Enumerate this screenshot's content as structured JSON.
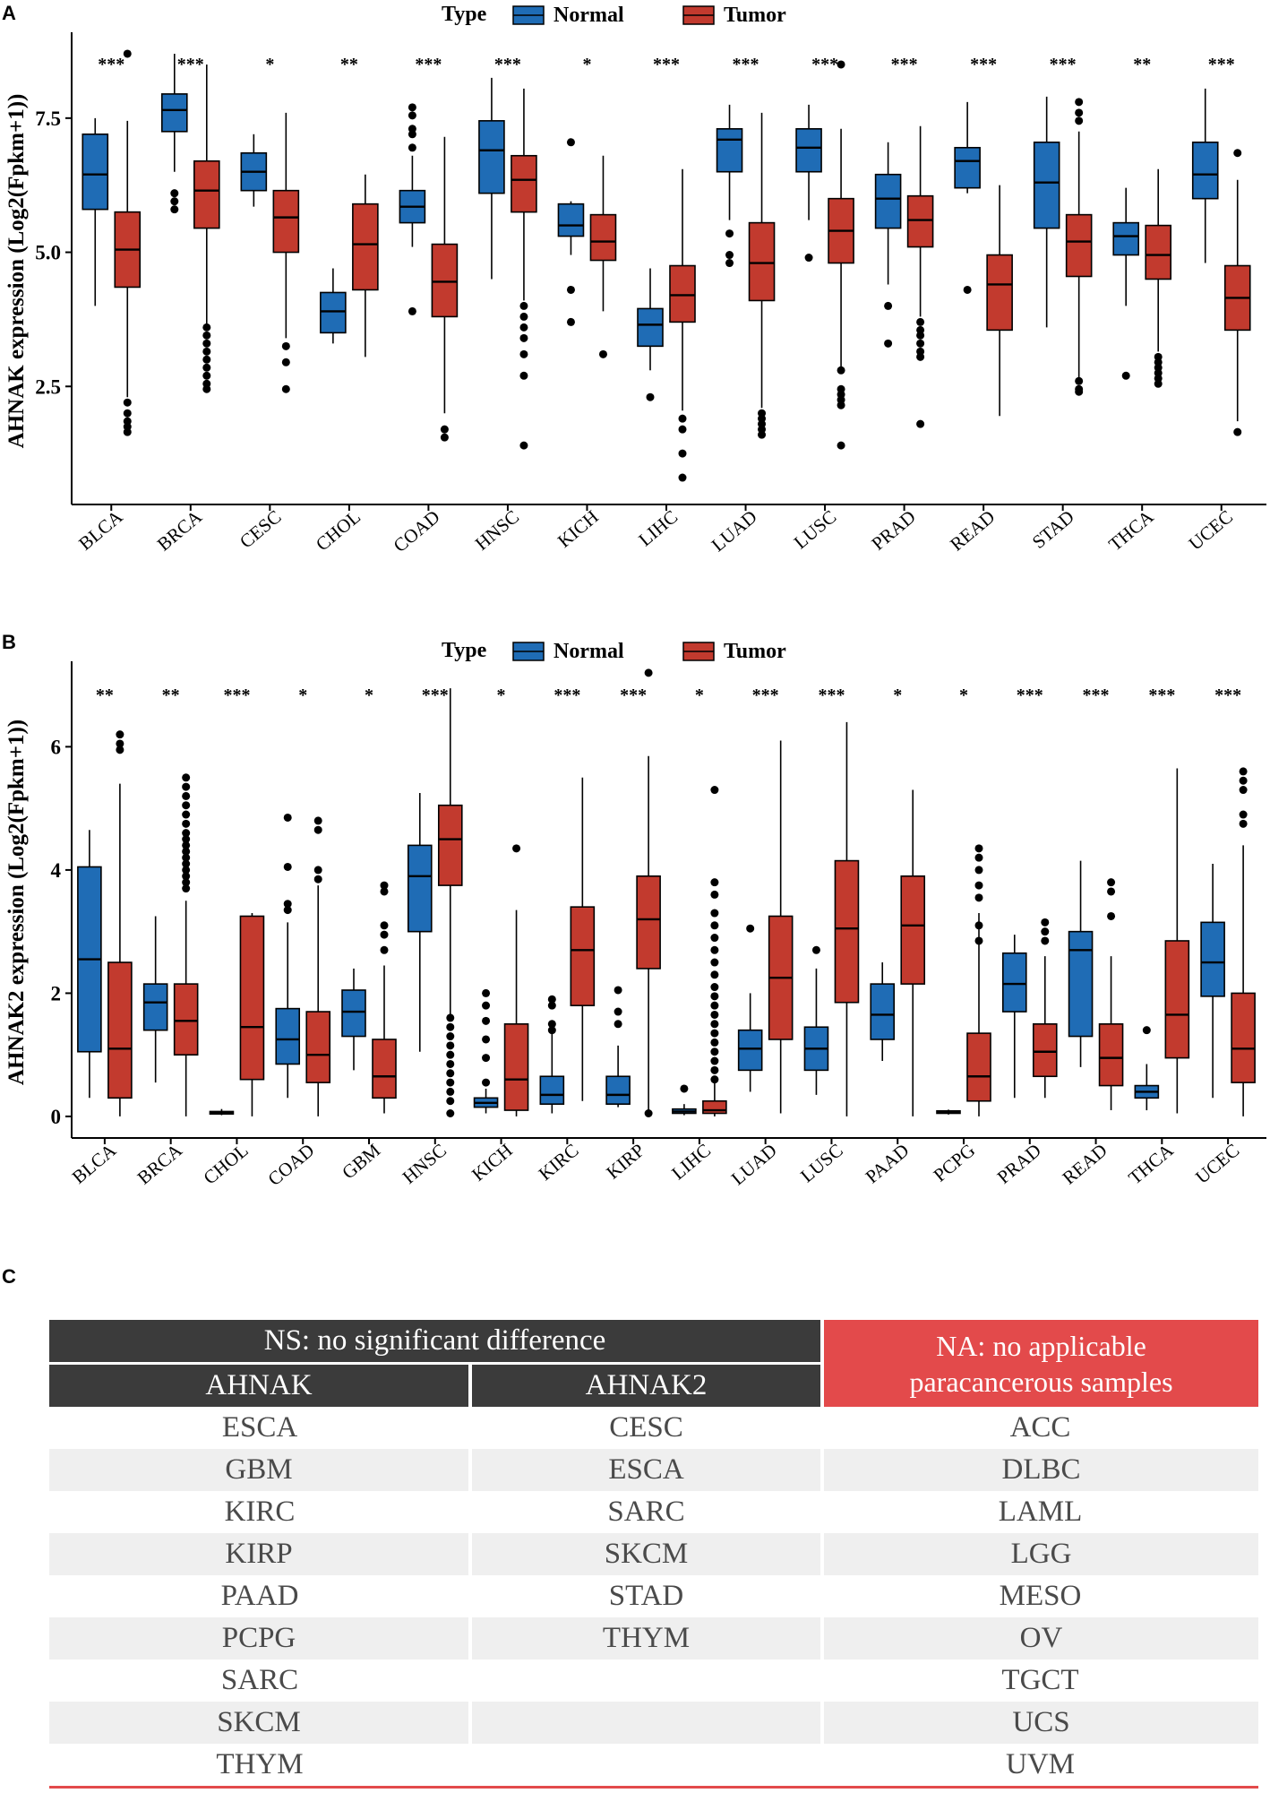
{
  "panel_labels": {
    "a": "A",
    "b": "B",
    "c": "C"
  },
  "colors": {
    "normal": "#1f6cb5",
    "tumor": "#c23a2e",
    "axis": "#000000"
  },
  "chart_data": [
    {
      "type": "boxplot",
      "panel": "A",
      "ylabel": "AHNAK expression (Log2(Fpkm+1))",
      "ylim": [
        0.3,
        9.0
      ],
      "yticks": [
        2.5,
        5.0,
        7.5
      ],
      "ytick_labels": [
        "2.5",
        "5.0",
        "7.5"
      ],
      "legend": {
        "title": "Type",
        "items": [
          "Normal",
          "Tumor"
        ],
        "position": "top"
      },
      "categories": [
        "BLCA",
        "BRCA",
        "CESC",
        "CHOL",
        "COAD",
        "HNSC",
        "KICH",
        "LIHC",
        "LUAD",
        "LUSC",
        "PRAD",
        "READ",
        "STAD",
        "THCA",
        "UCEC"
      ],
      "significance": [
        "***",
        "***",
        "*",
        "**",
        "***",
        "***",
        "*",
        "***",
        "***",
        "***",
        "***",
        "***",
        "***",
        "**",
        "***"
      ],
      "series": [
        {
          "name": "Normal",
          "boxes": [
            [
              4.0,
              5.8,
              6.45,
              7.2,
              7.5,
              []
            ],
            [
              6.5,
              7.25,
              7.65,
              7.95,
              8.7,
              [
                6.1,
                5.95,
                5.8
              ]
            ],
            [
              5.85,
              6.15,
              6.5,
              6.85,
              7.2,
              []
            ],
            [
              3.3,
              3.5,
              3.9,
              4.25,
              4.7,
              []
            ],
            [
              5.1,
              5.55,
              5.85,
              6.15,
              6.8,
              [
                7.7,
                7.55,
                7.3,
                7.2,
                6.95,
                3.9
              ]
            ],
            [
              4.5,
              6.1,
              6.9,
              7.45,
              8.25,
              []
            ],
            [
              4.95,
              5.3,
              5.5,
              5.9,
              5.95,
              [
                7.05,
                4.3,
                3.7
              ]
            ],
            [
              2.8,
              3.25,
              3.65,
              3.95,
              4.7,
              [
                2.3
              ]
            ],
            [
              5.6,
              6.5,
              7.1,
              7.3,
              7.75,
              [
                5.35,
                4.95,
                4.8
              ]
            ],
            [
              5.6,
              6.5,
              6.95,
              7.3,
              7.75,
              [
                4.9
              ]
            ],
            [
              4.4,
              5.45,
              6.0,
              6.45,
              7.05,
              [
                4.0,
                3.3
              ]
            ],
            [
              6.1,
              6.2,
              6.7,
              6.95,
              7.8,
              [
                4.3
              ]
            ],
            [
              3.6,
              5.45,
              6.3,
              7.05,
              7.9,
              []
            ],
            [
              4.0,
              4.95,
              5.3,
              5.55,
              6.2,
              [
                2.7
              ]
            ],
            [
              4.8,
              6.0,
              6.45,
              7.05,
              8.05,
              []
            ]
          ]
        },
        {
          "name": "Tumor",
          "boxes": [
            [
              2.3,
              4.35,
              5.05,
              5.75,
              7.45,
              [
                8.7,
                2.2,
                2.0,
                1.85,
                1.75,
                1.65
              ]
            ],
            [
              3.65,
              5.45,
              6.15,
              6.7,
              8.5,
              [
                3.6,
                3.45,
                3.3,
                3.15,
                3.0,
                2.85,
                2.7,
                2.55,
                2.45
              ]
            ],
            [
              3.4,
              5.0,
              5.65,
              6.15,
              7.6,
              [
                3.25,
                2.95,
                2.45
              ]
            ],
            [
              3.05,
              4.3,
              5.15,
              5.9,
              6.45,
              []
            ],
            [
              2.0,
              3.8,
              4.45,
              5.15,
              7.15,
              [
                1.7,
                1.55
              ]
            ],
            [
              4.1,
              5.75,
              6.35,
              6.8,
              8.05,
              [
                4.0,
                3.8,
                3.6,
                3.4,
                3.1,
                2.7,
                1.4
              ]
            ],
            [
              3.9,
              4.85,
              5.2,
              5.7,
              6.8,
              [
                3.1
              ]
            ],
            [
              2.05,
              3.7,
              4.2,
              4.75,
              6.55,
              [
                1.9,
                1.7,
                1.25,
                0.8
              ]
            ],
            [
              2.1,
              4.1,
              4.8,
              5.55,
              7.6,
              [
                2.0,
                1.9,
                1.8,
                1.7,
                1.6
              ]
            ],
            [
              2.85,
              4.8,
              5.4,
              6.0,
              7.3,
              [
                8.5,
                2.8,
                2.45,
                2.35,
                2.25,
                2.15,
                1.4
              ]
            ],
            [
              3.8,
              5.1,
              5.6,
              6.05,
              7.35,
              [
                3.7,
                3.55,
                3.45,
                3.3,
                3.15,
                3.05,
                1.8
              ]
            ],
            [
              1.95,
              3.55,
              4.4,
              4.95,
              6.25,
              []
            ],
            [
              2.65,
              4.55,
              5.2,
              5.7,
              7.25,
              [
                7.8,
                7.6,
                7.45,
                2.6,
                2.45,
                2.4
              ]
            ],
            [
              3.15,
              4.5,
              4.95,
              5.5,
              6.55,
              [
                3.05,
                2.95,
                2.85,
                2.75,
                2.65,
                2.55
              ]
            ],
            [
              1.85,
              3.55,
              4.15,
              4.75,
              6.35,
              [
                6.85,
                1.65
              ]
            ]
          ]
        }
      ]
    },
    {
      "type": "boxplot",
      "panel": "B",
      "ylabel": "AHNAK2 expression (Log2(Fpkm+1))",
      "ylim": [
        -0.35,
        7.3
      ],
      "yticks": [
        0,
        2,
        4,
        6
      ],
      "ytick_labels": [
        "0",
        "2",
        "4",
        "6"
      ],
      "legend": {
        "title": "Type",
        "items": [
          "Normal",
          "Tumor"
        ],
        "position": "top"
      },
      "categories": [
        "BLCA",
        "BRCA",
        "CHOL",
        "COAD",
        "GBM",
        "HNSC",
        "KICH",
        "KIRC",
        "KIRP",
        "LIHC",
        "LUAD",
        "LUSC",
        "PAAD",
        "PCPG",
        "PRAD",
        "READ",
        "THCA",
        "UCEC"
      ],
      "significance": [
        "**",
        "**",
        "***",
        "*",
        "*",
        "***",
        "*",
        "***",
        "***",
        "*",
        "***",
        "***",
        "*",
        "*",
        "***",
        "***",
        "***",
        "***"
      ],
      "series": [
        {
          "name": "Normal",
          "boxes": [
            [
              0.3,
              1.05,
              2.55,
              4.05,
              4.65,
              []
            ],
            [
              0.55,
              1.4,
              1.85,
              2.15,
              3.25,
              []
            ],
            [
              0.02,
              0.04,
              0.06,
              0.08,
              0.12,
              []
            ],
            [
              0.3,
              0.85,
              1.25,
              1.75,
              3.15,
              [
                4.85,
                4.05,
                3.45,
                3.35
              ]
            ],
            [
              0.75,
              1.3,
              1.7,
              2.05,
              2.4,
              []
            ],
            [
              1.05,
              3.0,
              3.9,
              4.4,
              5.25,
              []
            ],
            [
              0.05,
              0.15,
              0.22,
              0.3,
              0.45,
              [
                2.0,
                1.8,
                1.55,
                1.25,
                0.95,
                0.55
              ]
            ],
            [
              0.05,
              0.2,
              0.35,
              0.65,
              1.45,
              [
                1.9,
                1.8,
                1.5,
                1.4
              ]
            ],
            [
              0.15,
              0.2,
              0.35,
              0.65,
              1.15,
              [
                2.05,
                1.7,
                1.5
              ]
            ],
            [
              0.02,
              0.05,
              0.08,
              0.12,
              0.2,
              [
                0.45
              ]
            ],
            [
              0.4,
              0.75,
              1.1,
              1.4,
              2.0,
              [
                3.05
              ]
            ],
            [
              0.35,
              0.75,
              1.1,
              1.45,
              2.4,
              [
                2.7
              ]
            ],
            [
              0.9,
              1.25,
              1.65,
              2.15,
              2.5,
              []
            ],
            [
              0.03,
              0.05,
              0.07,
              0.09,
              0.11,
              []
            ],
            [
              0.3,
              1.7,
              2.15,
              2.65,
              2.95,
              []
            ],
            [
              0.8,
              1.3,
              2.7,
              3.0,
              4.15,
              []
            ],
            [
              0.1,
              0.3,
              0.4,
              0.5,
              0.85,
              [
                1.4
              ]
            ],
            [
              0.3,
              1.95,
              2.5,
              3.15,
              4.1,
              []
            ]
          ]
        },
        {
          "name": "Tumor",
          "boxes": [
            [
              0.0,
              0.3,
              1.1,
              2.5,
              5.4,
              [
                6.2,
                6.05,
                5.95
              ]
            ],
            [
              0.0,
              1.0,
              1.55,
              2.15,
              3.5,
              [
                5.5,
                5.35,
                5.2,
                5.05,
                4.9,
                4.75,
                4.6,
                4.5,
                4.4,
                4.3,
                4.2,
                4.1,
                4.0,
                3.9,
                3.8,
                3.7
              ]
            ],
            [
              0.0,
              0.6,
              1.45,
              3.25,
              3.3,
              []
            ],
            [
              0.0,
              0.55,
              1.0,
              1.7,
              3.75,
              [
                4.8,
                4.65,
                4.0,
                3.85
              ]
            ],
            [
              0.05,
              0.3,
              0.65,
              1.25,
              2.45,
              [
                3.75,
                3.65,
                3.1,
                2.95,
                2.7
              ]
            ],
            [
              1.65,
              3.75,
              4.5,
              5.05,
              6.95,
              [
                1.6,
                1.45,
                1.3,
                1.15,
                1.0,
                0.85,
                0.7,
                0.55,
                0.4,
                0.25,
                0.05
              ]
            ],
            [
              0.0,
              0.1,
              0.6,
              1.5,
              3.35,
              [
                4.35
              ]
            ],
            [
              0.25,
              1.8,
              2.7,
              3.4,
              5.5,
              []
            ],
            [
              0.05,
              2.4,
              3.2,
              3.9,
              5.85,
              [
                7.2,
                0.05
              ]
            ],
            [
              0.0,
              0.05,
              0.1,
              0.25,
              0.55,
              [
                5.3,
                3.8,
                3.6,
                3.3,
                3.1,
                2.9,
                2.7,
                2.5,
                2.3,
                2.1,
                1.95,
                1.8,
                1.65,
                1.5,
                1.35,
                1.2,
                1.05,
                0.9,
                0.75,
                0.6
              ]
            ],
            [
              0.05,
              1.25,
              2.25,
              3.25,
              6.1,
              []
            ],
            [
              0.0,
              1.85,
              3.05,
              4.15,
              6.4,
              []
            ],
            [
              0.0,
              2.15,
              3.1,
              3.9,
              5.3,
              []
            ],
            [
              0.0,
              0.25,
              0.65,
              1.35,
              3.3,
              [
                4.35,
                4.2,
                4.0,
                3.75,
                3.55,
                3.1,
                2.85
              ]
            ],
            [
              0.3,
              0.65,
              1.05,
              1.5,
              2.6,
              [
                3.15,
                3.0,
                2.85
              ]
            ],
            [
              0.1,
              0.5,
              0.95,
              1.5,
              2.6,
              [
                3.8,
                3.65,
                3.25
              ]
            ],
            [
              0.05,
              0.95,
              1.65,
              2.85,
              5.65,
              []
            ],
            [
              0.0,
              0.55,
              1.1,
              2.0,
              4.4,
              [
                5.6,
                5.45,
                5.3,
                4.9,
                4.75
              ]
            ]
          ]
        }
      ]
    }
  ],
  "table_c": {
    "header_ns": "NS: no significant difference",
    "header_na": [
      "NA: no applicable",
      "paracancerous samples"
    ],
    "col_ahnak": "AHNAK",
    "col_ahnak2": "AHNAK2",
    "rows": [
      [
        "ESCA",
        "CESC",
        "ACC"
      ],
      [
        "GBM",
        "ESCA",
        "DLBC"
      ],
      [
        "KIRC",
        "SARC",
        "LAML"
      ],
      [
        "KIRP",
        "SKCM",
        "LGG"
      ],
      [
        "PAAD",
        "STAD",
        "MESO"
      ],
      [
        "PCPG",
        "THYM",
        "OV"
      ],
      [
        "SARC",
        "",
        "TGCT"
      ],
      [
        "SKCM",
        "",
        "UCS"
      ],
      [
        "THYM",
        "",
        "UVM"
      ]
    ]
  }
}
